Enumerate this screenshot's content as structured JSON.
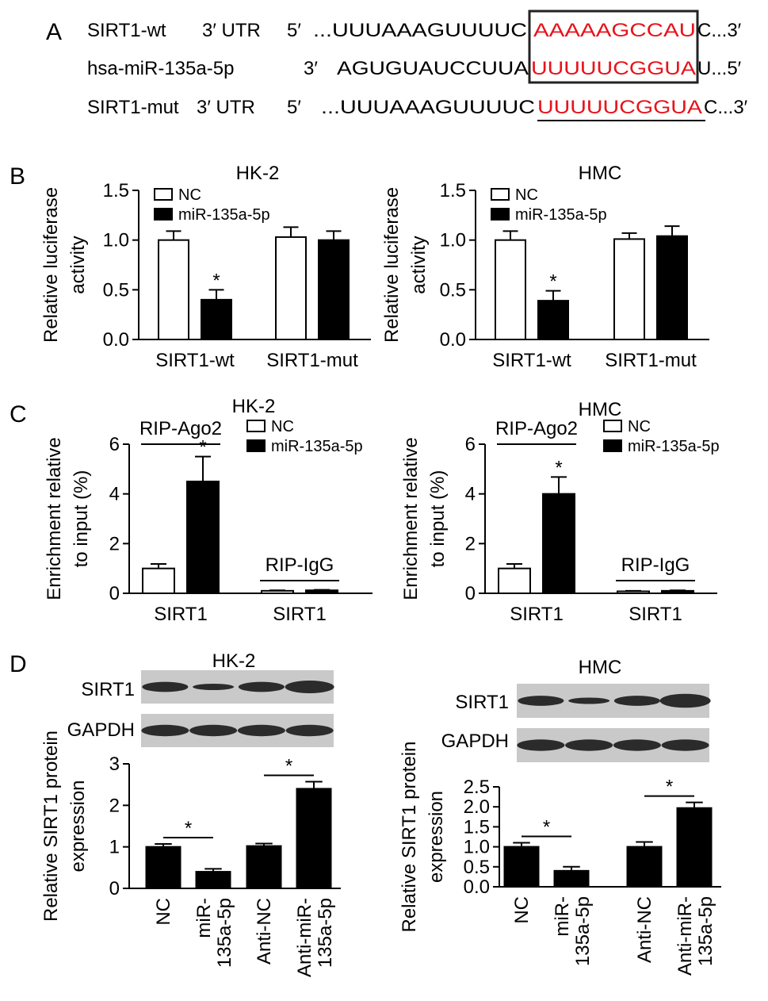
{
  "panels": [
    "A",
    "B",
    "C",
    "D"
  ],
  "sequences": [
    {
      "name": "SIRT1-wt",
      "region": "3′ UTR",
      "end": "5′",
      "seq": "...UUUAAAGUUUUC",
      "site": "AAAAAGCCAU",
      "tail": "C...3′"
    },
    {
      "name": "hsa-miR-135a-5p",
      "end": "3′",
      "seq": "AGUGUAUCCUUA",
      "site": "UUUUUCGGUA",
      "tail": "U...5′"
    },
    {
      "name": "SIRT1-mut",
      "region": "3′ UTR",
      "end": "5′",
      "seq": "...UUUAAAGUUUUC",
      "site": "UUUUUCGGUA",
      "tail": "C...3′"
    }
  ],
  "blots": [
    [
      "SIRT1",
      "GAPDH"
    ],
    [
      "SIRT1",
      "GAPDH"
    ]
  ],
  "chart_data": [
    {
      "type": "bar",
      "title": "HK-2",
      "ylabel": [
        "Relative luciferase",
        "activity"
      ],
      "categories": [
        "SIRT1-wt",
        "SIRT1-mut"
      ],
      "series": [
        {
          "name": "NC",
          "color": "#ffffff",
          "values": [
            1.0,
            1.03
          ],
          "errors": [
            0.09,
            0.1
          ]
        },
        {
          "name": "miR-135a-5p",
          "color": "#000000",
          "values": [
            0.4,
            1.0
          ],
          "errors": [
            0.1,
            0.09
          ]
        }
      ],
      "annotations": [
        "*"
      ],
      "ylim": [
        0,
        1.5
      ],
      "yticks": [
        {
          "value": 0,
          "label": "0.0"
        },
        {
          "value": 0.5,
          "label": "0.5"
        },
        {
          "value": 1,
          "label": "1.0"
        },
        {
          "value": 1.5,
          "label": "1.5"
        }
      ]
    },
    {
      "type": "bar",
      "title": "HMC",
      "ylabel": [
        "Relative luciferase",
        "activity"
      ],
      "categories": [
        "SIRT1-wt",
        "SIRT1-mut"
      ],
      "series": [
        {
          "name": "NC",
          "color": "#ffffff",
          "values": [
            1.0,
            1.01
          ],
          "errors": [
            0.09,
            0.06
          ]
        },
        {
          "name": "miR-135a-5p",
          "color": "#000000",
          "values": [
            0.39,
            1.04
          ],
          "errors": [
            0.1,
            0.1
          ]
        }
      ],
      "annotations": [
        "*"
      ],
      "ylim": [
        0,
        1.5
      ],
      "yticks": [
        {
          "value": 0,
          "label": "0.0"
        },
        {
          "value": 0.5,
          "label": "0.5"
        },
        {
          "value": 1,
          "label": "1.0"
        },
        {
          "value": 1.5,
          "label": "1.5"
        }
      ]
    },
    {
      "type": "bar",
      "title": "HK-2",
      "ylabel": [
        "Enrichment relative",
        "to input (%)"
      ],
      "categories": [
        "SIRT1",
        "SIRT1"
      ],
      "group_labels": [
        "RIP-Ago2",
        "RIP-IgG"
      ],
      "series": [
        {
          "name": "NC",
          "color": "#ffffff",
          "values": [
            1.0,
            0.1
          ],
          "errors": [
            0.18,
            0.02
          ]
        },
        {
          "name": "miR-135a-5p",
          "color": "#000000",
          "values": [
            4.5,
            0.12
          ],
          "errors": [
            1.0,
            0.02
          ]
        }
      ],
      "annotations": [
        "*"
      ],
      "ylim": [
        0,
        6
      ],
      "yticks": [
        0,
        2,
        4,
        6
      ]
    },
    {
      "type": "bar",
      "title": "HMC",
      "ylabel": [
        "Enrichment relative",
        "to input (%)"
      ],
      "categories": [
        "SIRT1",
        "SIRT1"
      ],
      "group_labels": [
        "RIP-Ago2",
        "RIP-IgG"
      ],
      "series": [
        {
          "name": "NC",
          "color": "#ffffff",
          "values": [
            1.0,
            0.08
          ],
          "errors": [
            0.18,
            0.02
          ]
        },
        {
          "name": "miR-135a-5p",
          "color": "#000000",
          "values": [
            4.0,
            0.1
          ],
          "errors": [
            0.68,
            0.02
          ]
        }
      ],
      "annotations": [
        "*"
      ],
      "ylim": [
        0,
        6
      ],
      "yticks": [
        0,
        2,
        4,
        6
      ]
    },
    {
      "type": "bar",
      "title": "HK-2",
      "ylabel": [
        "Relative SIRT1 protein",
        "expression"
      ],
      "categories": [
        "NC",
        "miR-135a-5p",
        "Anti-NC",
        "Anti-miR-135a-5p"
      ],
      "series": [
        {
          "color": "#000000",
          "values": [
            1.0,
            0.4,
            1.02,
            2.4
          ],
          "errors": [
            0.07,
            0.07,
            0.06,
            0.17
          ]
        }
      ],
      "annotations": [
        "*",
        "*"
      ],
      "ylim": [
        0,
        3
      ],
      "yticks": [
        0,
        1,
        2,
        3
      ]
    },
    {
      "type": "bar",
      "title": "HMC",
      "ylabel": [
        "Relative SIRT1 protein",
        "expression"
      ],
      "categories": [
        "NC",
        "miR-135a-5p",
        "Anti-NC",
        "Anti-miR-135a-5p"
      ],
      "series": [
        {
          "color": "#000000",
          "values": [
            1.0,
            0.4,
            1.0,
            1.97
          ],
          "errors": [
            0.1,
            0.1,
            0.12,
            0.14
          ]
        }
      ],
      "annotations": [
        "*",
        "*"
      ],
      "ylim": [
        0,
        2.5
      ],
      "yticks": [
        {
          "value": 0,
          "label": "0.0"
        },
        {
          "value": 0.5,
          "label": "0.5"
        },
        {
          "value": 1,
          "label": "1.0"
        },
        {
          "value": 1.5,
          "label": "1.5"
        },
        {
          "value": 2,
          "label": "2.0"
        },
        {
          "value": 2.5,
          "label": "2.5"
        }
      ]
    }
  ]
}
